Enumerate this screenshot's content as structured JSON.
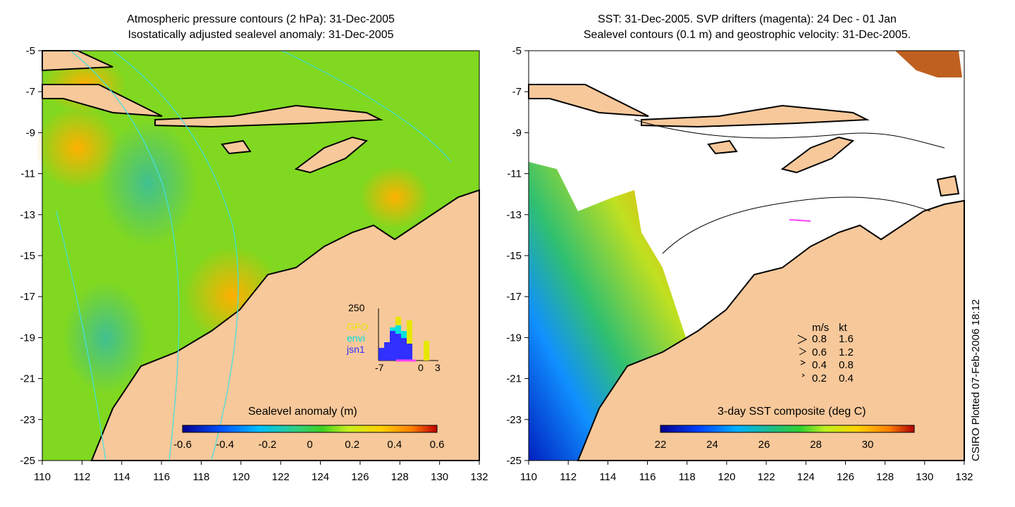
{
  "left_panel": {
    "title_line1": "Atmospheric pressure contours (2 hPa): 31-Dec-2005",
    "title_line2": "Isostatically adjusted sealevel anomaly: 31-Dec-2005",
    "colorbar_title": "Sealevel anomaly (m)",
    "colorbar_ticks": [
      "-0.6",
      "-0.4",
      "-0.2",
      "0",
      "0.2",
      "0.4",
      "0.6"
    ],
    "inset": {
      "y_max_label": "250",
      "x_labels": [
        "-7",
        "0",
        "3"
      ],
      "legend": [
        {
          "label": "GFO",
          "color": "#e6e600"
        },
        {
          "label": "envi",
          "color": "#00e0e0"
        },
        {
          "label": "jsn1",
          "color": "#3030ff"
        }
      ]
    }
  },
  "right_panel": {
    "title_line1": "SST: 31-Dec-2005. SVP drifters (magenta): 24 Dec - 01 Jan",
    "title_line2": "Sealevel contours (0.1 m) and geostrophic velocity: 31-Dec-2005.",
    "colorbar_title": "3-day SST composite (deg C)",
    "colorbar_ticks": [
      "22",
      "24",
      "26",
      "28",
      "30"
    ],
    "velocity_legend": {
      "header": [
        "m/s",
        "kt"
      ],
      "rows": [
        [
          "0.8",
          "1.6"
        ],
        [
          "0.6",
          "1.2"
        ],
        [
          "0.4",
          "0.8"
        ],
        [
          "0.2",
          "0.4"
        ]
      ]
    }
  },
  "x_ticks": [
    "110",
    "112",
    "114",
    "116",
    "118",
    "120",
    "122",
    "124",
    "126",
    "128",
    "130",
    "132"
  ],
  "y_ticks": [
    "-5",
    "-7",
    "-9",
    "-11",
    "-13",
    "-15",
    "-17",
    "-19",
    "-21",
    "-23",
    "-25"
  ],
  "credit": "CSIRO Plotted 07-Feb-2006 18:12",
  "colors": {
    "land": "#f7c89a",
    "sla_colormap": [
      "#00008f",
      "#0050ff",
      "#00c0ff",
      "#30d080",
      "#20d020",
      "#c8f020",
      "#ffd000",
      "#ff8000",
      "#c00000"
    ],
    "sst_colormap": [
      "#00008f",
      "#0040ff",
      "#00b0ff",
      "#20c080",
      "#30d030",
      "#c0f020",
      "#ffd000",
      "#ff8000",
      "#b00000"
    ]
  }
}
